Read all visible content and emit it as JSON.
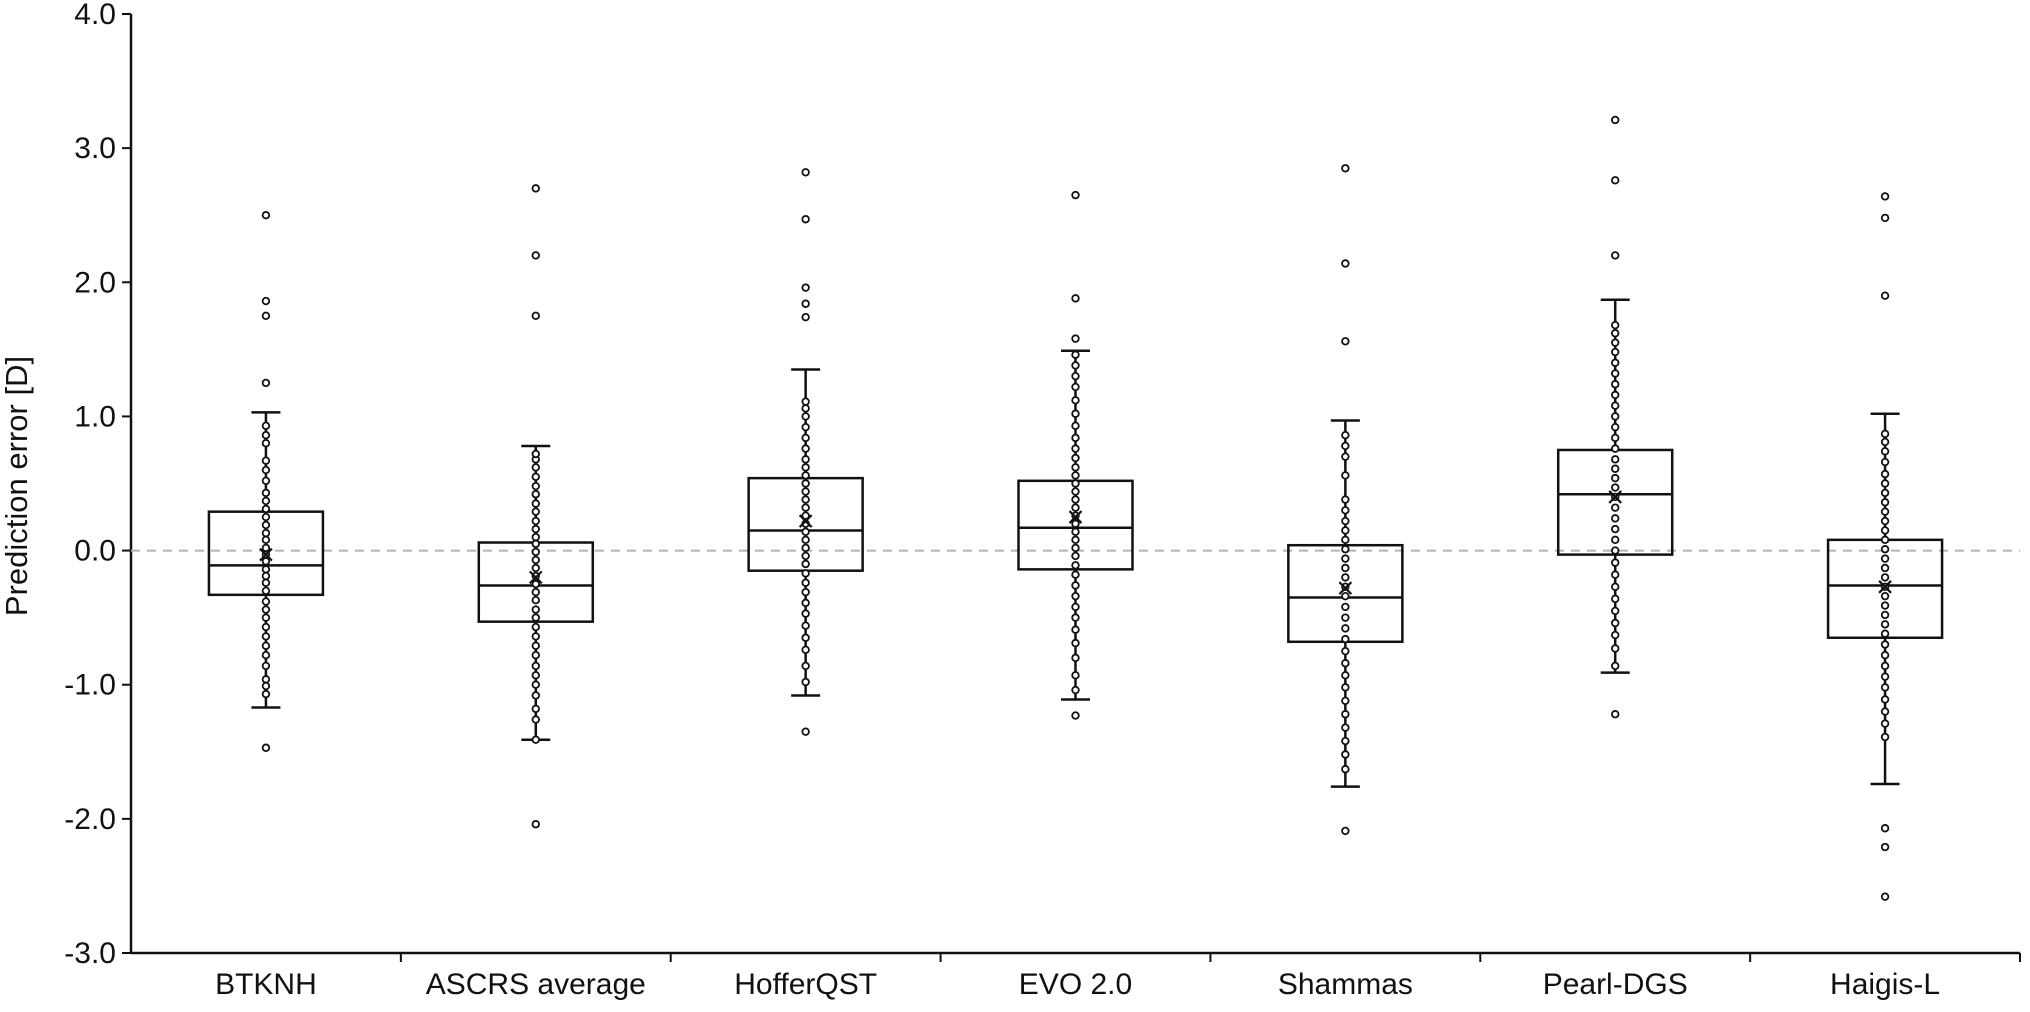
{
  "chart_data": {
    "type": "box",
    "title": "",
    "xlabel": "",
    "ylabel": "Prediction error [D]",
    "ylim": [
      -3.0,
      4.0
    ],
    "yticks": [
      -3.0,
      -2.0,
      -1.0,
      0.0,
      1.0,
      2.0,
      3.0,
      4.0
    ],
    "ytick_labels": [
      "-3.0",
      "-2.0",
      "-1.0",
      "0.0",
      "1.0",
      "2.0",
      "3.0",
      "4.0"
    ],
    "reference_line": 0.0,
    "grid": false,
    "categories": [
      "BTKNH",
      "ASCRS average",
      "HofferQST",
      "EVO 2.0",
      "Shammas",
      "Pearl-DGS",
      "Haigis-L"
    ],
    "boxes": [
      {
        "q1": -0.33,
        "median": -0.11,
        "q3": 0.29,
        "mean": -0.03,
        "whisker_low": -1.17,
        "whisker_high": 1.03,
        "points": [
          -1.07,
          -1.01,
          -0.96,
          -0.86,
          -0.78,
          -0.71,
          -0.64,
          -0.57,
          -0.5,
          -0.44,
          -0.38,
          -0.3,
          -0.24,
          -0.19,
          -0.14,
          -0.08,
          -0.03,
          0.02,
          0.08,
          0.13,
          0.19,
          0.25,
          0.31,
          0.37,
          0.43,
          0.52,
          0.6,
          0.67,
          0.8,
          0.86,
          0.93
        ],
        "outliers": [
          -1.47,
          1.25,
          1.75,
          1.86,
          2.5
        ]
      },
      {
        "q1": -0.53,
        "median": -0.26,
        "q3": 0.06,
        "mean": -0.2,
        "whisker_low": -1.41,
        "whisker_high": 0.78,
        "points": [
          -1.41,
          -1.26,
          -1.18,
          -1.08,
          -1.0,
          -0.93,
          -0.86,
          -0.78,
          -0.71,
          -0.64,
          -0.57,
          -0.5,
          -0.44,
          -0.37,
          -0.31,
          -0.25,
          -0.19,
          -0.13,
          -0.07,
          -0.01,
          0.05,
          0.1,
          0.16,
          0.22,
          0.29,
          0.35,
          0.42,
          0.48,
          0.55,
          0.62,
          0.68,
          0.72
        ],
        "outliers": [
          -2.04,
          1.75,
          2.2,
          2.7
        ]
      },
      {
        "q1": -0.15,
        "median": 0.15,
        "q3": 0.54,
        "mean": 0.22,
        "whisker_low": -1.08,
        "whisker_high": 1.35,
        "points": [
          -0.98,
          -0.86,
          -0.74,
          -0.65,
          -0.56,
          -0.47,
          -0.39,
          -0.31,
          -0.24,
          -0.17,
          -0.1,
          -0.04,
          0.02,
          0.08,
          0.14,
          0.2,
          0.26,
          0.32,
          0.38,
          0.44,
          0.5,
          0.56,
          0.62,
          0.68,
          0.76,
          0.84,
          0.92,
          1.0,
          1.06,
          1.11
        ],
        "outliers": [
          -1.35,
          1.74,
          1.84,
          1.96,
          2.47,
          2.82
        ]
      },
      {
        "q1": -0.14,
        "median": 0.17,
        "q3": 0.52,
        "mean": 0.25,
        "whisker_low": -1.11,
        "whisker_high": 1.49,
        "points": [
          -1.04,
          -0.93,
          -0.8,
          -0.69,
          -0.59,
          -0.5,
          -0.42,
          -0.34,
          -0.26,
          -0.18,
          -0.11,
          -0.04,
          0.02,
          0.08,
          0.14,
          0.2,
          0.26,
          0.32,
          0.38,
          0.44,
          0.5,
          0.56,
          0.62,
          0.69,
          0.76,
          0.84,
          0.93,
          1.02,
          1.12,
          1.22,
          1.3,
          1.38,
          1.46
        ],
        "outliers": [
          -1.23,
          1.58,
          1.88,
          2.65
        ]
      },
      {
        "q1": -0.68,
        "median": -0.35,
        "q3": 0.04,
        "mean": -0.28,
        "whisker_low": -1.76,
        "whisker_high": 0.97,
        "points": [
          -1.63,
          -1.52,
          -1.42,
          -1.32,
          -1.22,
          -1.12,
          -1.02,
          -0.93,
          -0.84,
          -0.75,
          -0.66,
          -0.58,
          -0.5,
          -0.42,
          -0.34,
          -0.27,
          -0.2,
          -0.13,
          -0.06,
          0.01,
          0.08,
          0.15,
          0.22,
          0.3,
          0.38,
          0.56,
          0.7,
          0.78,
          0.86
        ],
        "outliers": [
          -2.09,
          1.56,
          2.14,
          2.85
        ]
      },
      {
        "q1": -0.03,
        "median": 0.42,
        "q3": 0.75,
        "mean": 0.4,
        "whisker_low": -0.91,
        "whisker_high": 1.87,
        "points": [
          -0.86,
          -0.73,
          -0.63,
          -0.54,
          -0.45,
          -0.36,
          -0.27,
          -0.18,
          -0.09,
          0.0,
          0.08,
          0.16,
          0.24,
          0.32,
          0.4,
          0.47,
          0.54,
          0.61,
          0.68,
          0.76,
          0.84,
          0.92,
          1.0,
          1.08,
          1.16,
          1.24,
          1.32,
          1.4,
          1.48,
          1.55,
          1.62,
          1.68
        ],
        "outliers": [
          -1.22,
          2.2,
          2.76,
          3.21
        ]
      },
      {
        "q1": -0.65,
        "median": -0.26,
        "q3": 0.08,
        "mean": -0.27,
        "whisker_low": -1.74,
        "whisker_high": 1.02,
        "points": [
          -1.39,
          -1.29,
          -1.2,
          -1.11,
          -1.02,
          -0.94,
          -0.86,
          -0.78,
          -0.7,
          -0.62,
          -0.55,
          -0.48,
          -0.41,
          -0.34,
          -0.27,
          -0.2,
          -0.13,
          -0.06,
          0.01,
          0.08,
          0.15,
          0.22,
          0.29,
          0.36,
          0.43,
          0.5,
          0.57,
          0.66,
          0.74,
          0.81,
          0.87
        ],
        "outliers": [
          -2.58,
          -2.21,
          -2.07,
          1.9,
          2.48,
          2.64
        ]
      }
    ]
  }
}
